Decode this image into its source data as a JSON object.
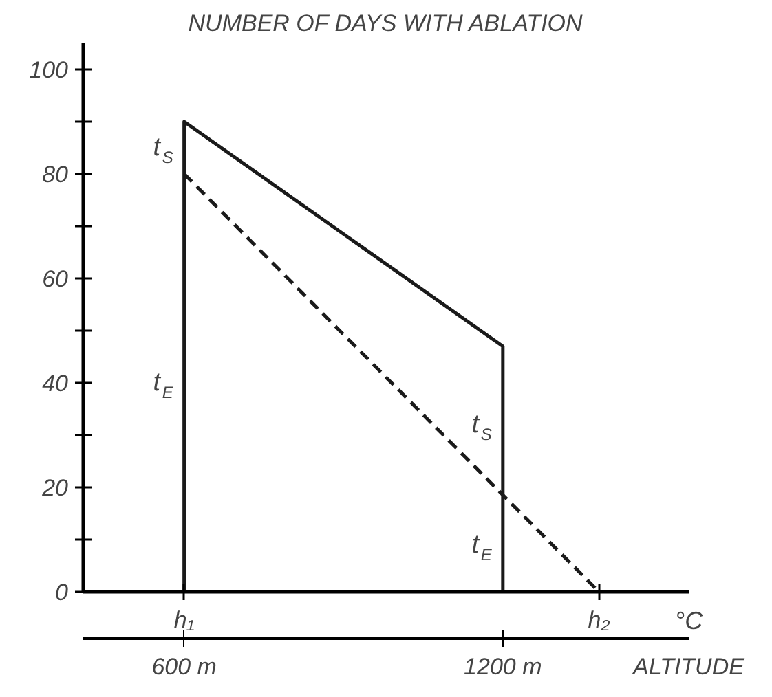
{
  "chart_data": {
    "type": "line",
    "title": "NUMBER OF DAYS WITH ABLATION",
    "xlabel": "ALTITUDE",
    "xlim": [
      410,
      1550
    ],
    "ylim": [
      0,
      105
    ],
    "xticks": [
      {
        "value": 600,
        "label": "600 m"
      },
      {
        "value": 1200,
        "label": "1200 m"
      }
    ],
    "yticks": [
      0,
      {
        "value": 10,
        "label": null
      },
      20,
      {
        "value": 30,
        "label": null
      },
      40,
      {
        "value": 50,
        "label": null
      },
      60,
      {
        "value": 70,
        "label": null
      },
      80,
      {
        "value": 90,
        "label": null
      },
      100
    ],
    "series": [
      {
        "color": "#1a1a1a",
        "line_style": "solid",
        "x": [
          600,
          600,
          1200,
          1200
        ],
        "values": [
          0,
          90,
          47,
          0
        ]
      },
      {
        "color": "#1a1a1a",
        "line_style": "dashed",
        "x": [
          600,
          1381
        ],
        "values": [
          80,
          0
        ]
      }
    ],
    "annotations": [
      {
        "text": "t$_{S}$",
        "x": 600,
        "y": 85
      },
      {
        "text": "t$_{E}$",
        "x": 600,
        "y": 40
      },
      {
        "text": "t$_{S}$",
        "x": 1200,
        "y": 32
      },
      {
        "text": "t$_{E}$",
        "x": 1200,
        "y": 9
      },
      {
        "text": "h₁",
        "x": 600,
        "y": 0
      },
      {
        "text": "h₂",
        "x": 1381,
        "y": 0
      },
      "°C"
    ],
    "grid": false,
    "marker": "none"
  }
}
